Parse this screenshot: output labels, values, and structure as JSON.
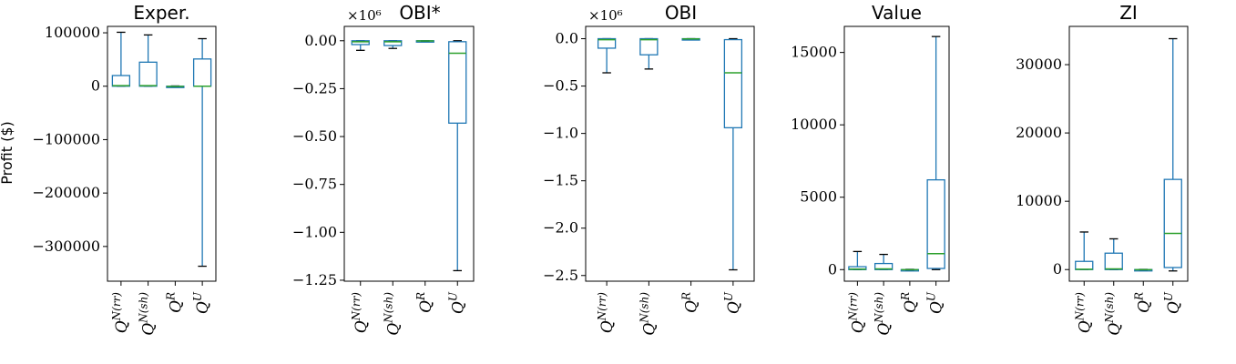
{
  "ylabel": "Profit ($)",
  "chart_data": [
    {
      "type": "box",
      "title": "Exper.",
      "sci_label": "",
      "ylim": [
        -365000,
        112000
      ],
      "yticks": [
        100000,
        0,
        -100000,
        -200000,
        -300000
      ],
      "ytick_labels": [
        "100000",
        "0",
        "−100000",
        "−200000",
        "−300000"
      ],
      "categories": [
        {
          "base": "Q",
          "sup": "N(rr)"
        },
        {
          "base": "Q",
          "sup": "N(sh)"
        },
        {
          "base": "Q",
          "sup": "R"
        },
        {
          "base": "Q",
          "sup": "U"
        }
      ],
      "boxes": [
        {
          "whislo": 0,
          "q1": 0,
          "med": 1000,
          "q3": 20000,
          "whishi": 101000
        },
        {
          "whislo": 0,
          "q1": 0,
          "med": 1000,
          "q3": 45000,
          "whishi": 96000
        },
        {
          "whislo": -1500,
          "q1": -1000,
          "med": -500,
          "q3": 0,
          "whishi": 500
        },
        {
          "whislo": -337000,
          "q1": 0,
          "med": 0,
          "q3": 51000,
          "whishi": 89000
        }
      ]
    },
    {
      "type": "box",
      "title": "OBI*",
      "sci_label": "×10⁶",
      "ylim": [
        -1.255,
        0.075
      ],
      "yticks": [
        0.0,
        -0.25,
        -0.5,
        -0.75,
        -1.0,
        -1.25
      ],
      "ytick_labels": [
        "0.00",
        "−0.25",
        "−0.50",
        "−0.75",
        "−1.00",
        "−1.25"
      ],
      "categories": [
        {
          "base": "Q",
          "sup": "N(rr)"
        },
        {
          "base": "Q",
          "sup": "N(sh)"
        },
        {
          "base": "Q",
          "sup": "R"
        },
        {
          "base": "Q",
          "sup": "U"
        }
      ],
      "boxes": [
        {
          "whislo": -0.05,
          "q1": -0.02,
          "med": -0.005,
          "q3": 0.0,
          "whishi": 0.0
        },
        {
          "whislo": -0.04,
          "q1": -0.025,
          "med": -0.005,
          "q3": 0.0,
          "whishi": 0.0
        },
        {
          "whislo": -0.005,
          "q1": -0.003,
          "med": -0.001,
          "q3": 0.0,
          "whishi": 0.0
        },
        {
          "whislo": -1.2,
          "q1": -0.43,
          "med": -0.065,
          "q3": -0.005,
          "whishi": 0.0
        }
      ]
    },
    {
      "type": "box",
      "title": "OBI",
      "sci_label": "×10⁶",
      "ylim": [
        -2.56,
        0.13
      ],
      "yticks": [
        0.0,
        -0.5,
        -1.0,
        -1.5,
        -2.0,
        -2.5
      ],
      "ytick_labels": [
        "0.0",
        "−0.5",
        "−1.0",
        "−1.5",
        "−2.0",
        "−2.5"
      ],
      "categories": [
        {
          "base": "Q",
          "sup": "N(rr)"
        },
        {
          "base": "Q",
          "sup": "N(sh)"
        },
        {
          "base": "Q",
          "sup": "R"
        },
        {
          "base": "Q",
          "sup": "U"
        }
      ],
      "boxes": [
        {
          "whislo": -0.36,
          "q1": -0.1,
          "med": -0.01,
          "q3": 0.0,
          "whishi": 0.0
        },
        {
          "whislo": -0.32,
          "q1": -0.17,
          "med": -0.01,
          "q3": 0.0,
          "whishi": 0.0
        },
        {
          "whislo": -0.01,
          "q1": -0.005,
          "med": -0.002,
          "q3": 0.0,
          "whishi": 0.0
        },
        {
          "whislo": -2.44,
          "q1": -0.94,
          "med": -0.36,
          "q3": -0.01,
          "whishi": 0.0
        }
      ]
    },
    {
      "type": "box",
      "title": "Value",
      "sci_label": "",
      "ylim": [
        -800,
        16800
      ],
      "yticks": [
        15000,
        10000,
        5000,
        0
      ],
      "ytick_labels": [
        "15000",
        "10000",
        "5000",
        "0"
      ],
      "categories": [
        {
          "base": "Q",
          "sup": "N(rr)"
        },
        {
          "base": "Q",
          "sup": "N(sh)"
        },
        {
          "base": "Q",
          "sup": "R"
        },
        {
          "base": "Q",
          "sup": "U"
        }
      ],
      "boxes": [
        {
          "whislo": 0,
          "q1": 0,
          "med": 30,
          "q3": 200,
          "whishi": 1250
        },
        {
          "whislo": 0,
          "q1": 0,
          "med": 50,
          "q3": 420,
          "whishi": 1050
        },
        {
          "whislo": -50,
          "q1": -30,
          "med": -10,
          "q3": 0,
          "whishi": 20
        },
        {
          "whislo": 0,
          "q1": 80,
          "med": 1100,
          "q3": 6200,
          "whishi": 16100
        }
      ]
    },
    {
      "type": "box",
      "title": "ZI",
      "sci_label": "",
      "ylim": [
        -1700,
        35600
      ],
      "yticks": [
        30000,
        20000,
        10000,
        0
      ],
      "ytick_labels": [
        "30000",
        "20000",
        "10000",
        "0"
      ],
      "categories": [
        {
          "base": "Q",
          "sup": "N(rr)"
        },
        {
          "base": "Q",
          "sup": "N(sh)"
        },
        {
          "base": "Q",
          "sup": "R"
        },
        {
          "base": "Q",
          "sup": "U"
        }
      ],
      "boxes": [
        {
          "whislo": 0,
          "q1": 0,
          "med": 50,
          "q3": 1200,
          "whishi": 5500
        },
        {
          "whislo": 0,
          "q1": 0,
          "med": 100,
          "q3": 2400,
          "whishi": 4500
        },
        {
          "whislo": -100,
          "q1": -60,
          "med": -20,
          "q3": 0,
          "whishi": 30
        },
        {
          "whislo": -200,
          "q1": 300,
          "med": 5300,
          "q3": 13200,
          "whishi": 33800
        }
      ]
    }
  ],
  "colors": {
    "box": "#1f77b4",
    "median": "#2ca02c",
    "axis": "#000000"
  }
}
